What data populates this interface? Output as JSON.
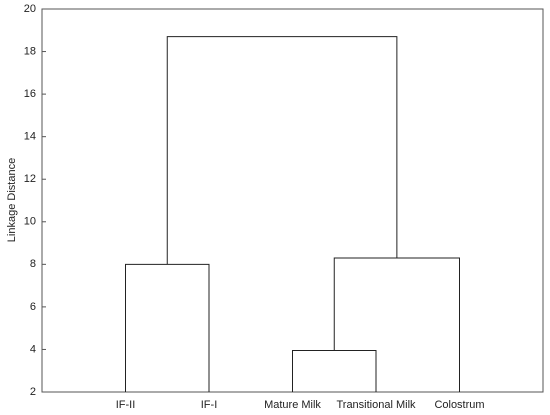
{
  "chart_data": {
    "type": "dendrogram",
    "y_label": "Linkage Distance",
    "ylim": [
      2,
      20
    ],
    "yticks": [
      2,
      4,
      6,
      8,
      10,
      12,
      14,
      16,
      18,
      20
    ],
    "color": "#222222",
    "tree": {
      "height": 18.7,
      "children": [
        {
          "height": 8.0,
          "children": [
            "IF-II",
            "IF-I"
          ]
        },
        {
          "height": 8.3,
          "children": [
            {
              "height": 3.95,
              "children": [
                "Mature Milk",
                "Transitional Milk"
              ]
            },
            "Colostrum"
          ]
        }
      ]
    }
  }
}
